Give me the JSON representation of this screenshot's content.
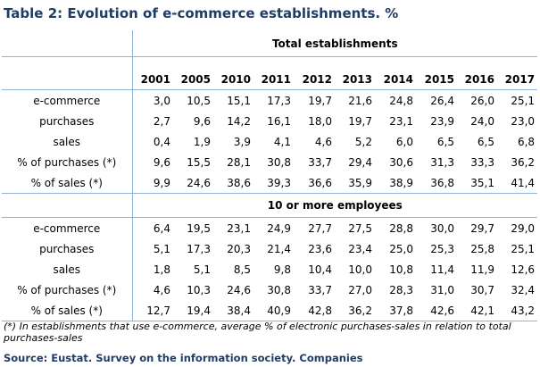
{
  "title": "Table 2: Evolution of e-commerce establishments. %",
  "table": {
    "years": [
      "2001",
      "2005",
      "2010",
      "2011",
      "2012",
      "2013",
      "2014",
      "2015",
      "2016",
      "2017"
    ],
    "groups": [
      {
        "heading": "Total establishments",
        "rows": [
          {
            "label": "e-commerce",
            "values": [
              "3,0",
              "10,5",
              "15,1",
              "17,3",
              "19,7",
              "21,6",
              "24,8",
              "26,4",
              "26,0",
              "25,1"
            ]
          },
          {
            "label": "purchases",
            "values": [
              "2,7",
              "9,6",
              "14,2",
              "16,1",
              "18,0",
              "19,7",
              "23,1",
              "23,9",
              "24,0",
              "23,0"
            ]
          },
          {
            "label": "sales",
            "values": [
              "0,4",
              "1,9",
              "3,9",
              "4,1",
              "4,6",
              "5,2",
              "6,0",
              "6,5",
              "6,5",
              "6,8"
            ]
          },
          {
            "label": "% of purchases (*)",
            "values": [
              "9,6",
              "15,5",
              "28,1",
              "30,8",
              "33,7",
              "29,4",
              "30,6",
              "31,3",
              "33,3",
              "36,2"
            ]
          },
          {
            "label": "% of sales (*)",
            "values": [
              "9,9",
              "24,6",
              "38,6",
              "39,3",
              "36,6",
              "35,9",
              "38,9",
              "36,8",
              "35,1",
              "41,4"
            ]
          }
        ]
      },
      {
        "heading": "10 or more employees",
        "rows": [
          {
            "label": "e-commerce",
            "values": [
              "6,4",
              "19,5",
              "23,1",
              "24,9",
              "27,7",
              "27,5",
              "28,8",
              "30,0",
              "29,7",
              "29,0"
            ]
          },
          {
            "label": "purchases",
            "values": [
              "5,1",
              "17,3",
              "20,3",
              "21,4",
              "23,6",
              "23,4",
              "25,0",
              "25,3",
              "25,8",
              "25,1"
            ]
          },
          {
            "label": "sales",
            "values": [
              "1,8",
              "5,1",
              "8,5",
              "9,8",
              "10,4",
              "10,0",
              "10,8",
              "11,4",
              "11,9",
              "12,6"
            ]
          },
          {
            "label": "% of purchases (*)",
            "values": [
              "4,6",
              "10,3",
              "24,6",
              "30,8",
              "33,7",
              "27,0",
              "28,3",
              "31,0",
              "30,7",
              "32,4"
            ]
          },
          {
            "label": "% of sales (*)",
            "values": [
              "12,7",
              "19,4",
              "38,4",
              "40,9",
              "42,8",
              "36,2",
              "37,8",
              "42,6",
              "42,1",
              "43,2"
            ]
          }
        ]
      }
    ]
  },
  "note": "(*) In establishments that use e-commerce, average % of electronic purchases-sales in relation to total purchases-sales",
  "source": "Source: Eustat. Survey on the information society. Companies",
  "colors": {
    "title": "#1f3d66",
    "rule": "#8fb3d9"
  }
}
